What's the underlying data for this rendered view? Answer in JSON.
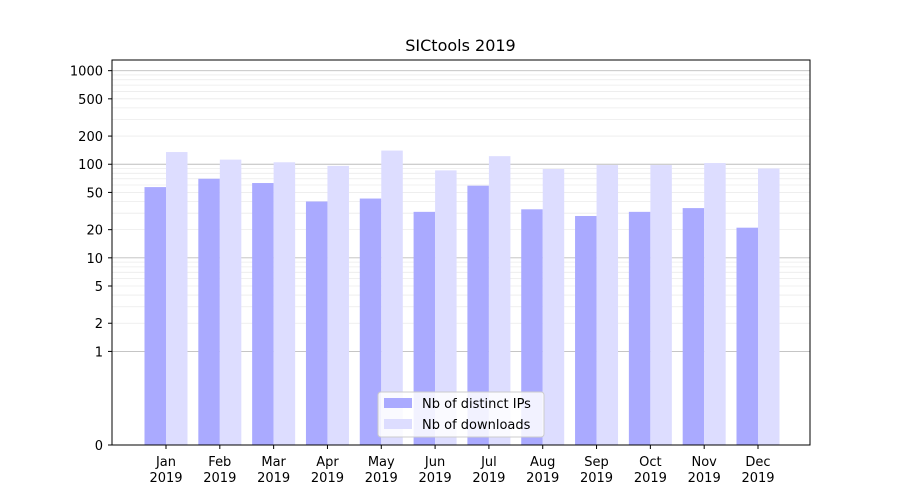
{
  "chart_data": {
    "type": "bar",
    "title": "SICtools 2019",
    "xlabel": "",
    "ylabel": "",
    "yscale": "symlog",
    "ylim": [
      0,
      1300
    ],
    "yticks": [
      0,
      1,
      2,
      5,
      10,
      20,
      50,
      100,
      200,
      500,
      1000
    ],
    "categories": [
      {
        "month": "Jan",
        "year": "2019"
      },
      {
        "month": "Feb",
        "year": "2019"
      },
      {
        "month": "Mar",
        "year": "2019"
      },
      {
        "month": "Apr",
        "year": "2019"
      },
      {
        "month": "May",
        "year": "2019"
      },
      {
        "month": "Jun",
        "year": "2019"
      },
      {
        "month": "Jul",
        "year": "2019"
      },
      {
        "month": "Aug",
        "year": "2019"
      },
      {
        "month": "Sep",
        "year": "2019"
      },
      {
        "month": "Oct",
        "year": "2019"
      },
      {
        "month": "Nov",
        "year": "2019"
      },
      {
        "month": "Dec",
        "year": "2019"
      }
    ],
    "series": [
      {
        "name": "Nb of distinct IPs",
        "color": "#aaaaff",
        "values": [
          57,
          70,
          63,
          40,
          43,
          31,
          59,
          33,
          28,
          31,
          34,
          21
        ]
      },
      {
        "name": "Nb of downloads",
        "color": "#ddddff",
        "values": [
          135,
          112,
          105,
          96,
          140,
          86,
          122,
          89,
          98,
          98,
          103,
          90
        ]
      }
    ],
    "grid": true,
    "legend": "bottom-center"
  }
}
